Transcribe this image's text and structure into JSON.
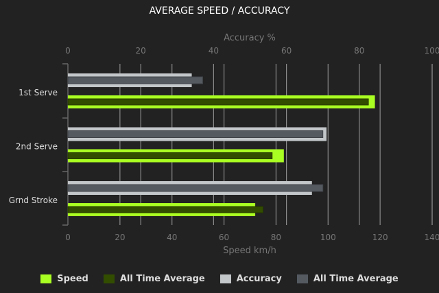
{
  "chart_data": {
    "type": "bar",
    "orientation": "horizontal",
    "title": "AVERAGE SPEED / ACCURACY",
    "categories": [
      "1st Serve",
      "2nd Serve",
      "Grnd Stroke"
    ],
    "x_bottom": {
      "label": "Speed km/h",
      "range": [
        0,
        140
      ],
      "ticks": [
        0,
        20,
        40,
        60,
        80,
        100,
        120,
        140
      ]
    },
    "x_top": {
      "label": "Accuracy %",
      "range": [
        0,
        100
      ],
      "ticks": [
        0,
        20,
        40,
        60,
        80,
        100
      ]
    },
    "grid": true,
    "legend_position": "bottom",
    "series": [
      {
        "name": "Speed",
        "axis": "speed",
        "color": "#aaff22",
        "values": [
          118,
          83,
          72
        ]
      },
      {
        "name": "All Time Average",
        "axis": "speed",
        "color": "#334d00",
        "values": [
          115.5,
          78.5,
          75
        ]
      },
      {
        "name": "Accuracy",
        "axis": "accuracy",
        "color": "#c4c7c9",
        "values": [
          34,
          71,
          67
        ]
      },
      {
        "name": "All Time Average",
        "axis": "accuracy",
        "color": "#555a61",
        "values": [
          37,
          70,
          70
        ]
      }
    ]
  }
}
